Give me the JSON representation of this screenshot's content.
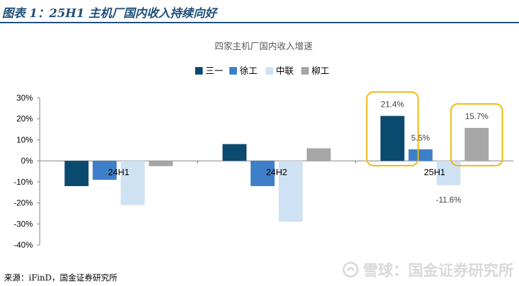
{
  "header": {
    "title": "图表 1：25H1 主机厂国内收入持续向好"
  },
  "footer": {
    "source": "来源：iFinD，国金证券研究所"
  },
  "watermark": {
    "text": "雪球：国金证券研究所"
  },
  "chart_data": {
    "type": "bar",
    "title": "四家主机厂国内收入增速",
    "categories": [
      "24H1",
      "24H2",
      "25H1"
    ],
    "series": [
      {
        "name": "三一",
        "color": "#0b4a6f",
        "values": [
          -12.0,
          8.0,
          21.4
        ]
      },
      {
        "name": "徐工",
        "color": "#3d7fc9",
        "values": [
          -9.0,
          -12.0,
          5.5
        ]
      },
      {
        "name": "中联",
        "color": "#cfe2f3",
        "values": [
          -21.0,
          -29.0,
          -11.6
        ]
      },
      {
        "name": "柳工",
        "color": "#a6a6a6",
        "values": [
          -2.5,
          6.0,
          15.7
        ]
      }
    ],
    "data_labels": [
      {
        "series": 0,
        "category": 2,
        "text": "21.4%"
      },
      {
        "series": 1,
        "category": 2,
        "text": "5.5%"
      },
      {
        "series": 2,
        "category": 2,
        "text": "-11.6%"
      },
      {
        "series": 3,
        "category": 2,
        "text": "15.7%"
      }
    ],
    "highlights": [
      {
        "series": 0,
        "category": 2,
        "color": "#f2b705"
      },
      {
        "series": 3,
        "category": 2,
        "color": "#f2b705"
      }
    ],
    "ylim": [
      -40,
      30
    ],
    "yticks": [
      -40,
      -30,
      -20,
      -10,
      0,
      10,
      20,
      30
    ],
    "ytick_labels": [
      "-40%",
      "-30%",
      "-20%",
      "-10%",
      "0%",
      "10%",
      "20%",
      "30%"
    ],
    "legend": "top-center",
    "grid": false
  }
}
